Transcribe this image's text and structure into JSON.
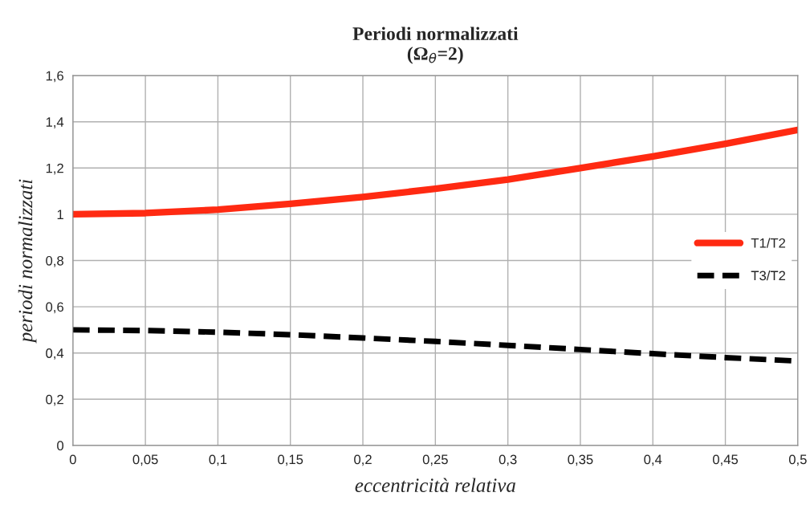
{
  "chart_data": {
    "type": "line",
    "title": "Periodi normalizzati\n(Ω$_{θ}$=2)",
    "xlabel": "eccentricità relativa",
    "ylabel": "periodi normalizzati",
    "x": [
      0,
      0.05,
      0.1,
      0.15,
      0.2,
      0.25,
      0.3,
      0.35,
      0.4,
      0.45,
      0.5
    ],
    "series": [
      {
        "name": "T1/T2",
        "color": "#ff2a12",
        "line_style": "solid",
        "values": [
          1.0,
          1.005,
          1.02,
          1.045,
          1.075,
          1.11,
          1.15,
          1.2,
          1.25,
          1.305,
          1.365
        ]
      },
      {
        "name": "T3/T2",
        "color": "#000000",
        "line_style": "dashed",
        "values": [
          0.5,
          0.497,
          0.49,
          0.479,
          0.465,
          0.45,
          0.433,
          0.415,
          0.397,
          0.38,
          0.365
        ]
      }
    ],
    "xlim": [
      0,
      0.5
    ],
    "xticks": [
      0,
      {
        "value": 0.05,
        "label": "0,05"
      },
      {
        "value": 0.1,
        "label": "0,1"
      },
      {
        "value": 0.15,
        "label": "0,15"
      },
      {
        "value": 0.2,
        "label": "0,2"
      },
      {
        "value": 0.25,
        "label": "0,25"
      },
      {
        "value": 0.3,
        "label": "0,3"
      },
      {
        "value": 0.35,
        "label": "0,35"
      },
      {
        "value": 0.4,
        "label": "0,4"
      },
      {
        "value": 0.45,
        "label": "0,45"
      },
      {
        "value": 0.5,
        "label": "0,5"
      }
    ],
    "ylim": [
      0,
      1.6
    ],
    "yticks": [
      0,
      {
        "value": 0.2,
        "label": "0,2"
      },
      {
        "value": 0.4,
        "label": "0,4"
      },
      {
        "value": 0.6,
        "label": "0,6"
      },
      {
        "value": 0.8,
        "label": "0,8"
      },
      1,
      {
        "value": 1.2,
        "label": "1,2"
      },
      {
        "value": 1.4,
        "label": "1,4"
      },
      {
        "value": 1.6,
        "label": "1,6"
      }
    ],
    "grid": true,
    "legend": "right",
    "marker": "none"
  }
}
